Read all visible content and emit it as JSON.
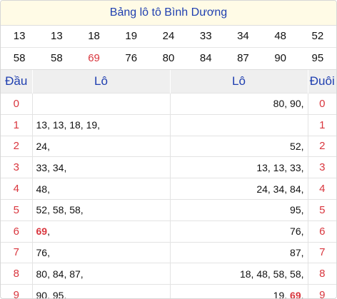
{
  "title": "Bảng lô tô Bình Dương",
  "numbers_row1": [
    "13",
    "13",
    "18",
    "19",
    "24",
    "33",
    "34",
    "48",
    "52"
  ],
  "numbers_row2": [
    "58",
    "58",
    "69",
    "76",
    "80",
    "84",
    "87",
    "90",
    "95"
  ],
  "highlight_number": "69",
  "headers": {
    "dau": "Đầu",
    "lo_left": "Lô",
    "lo_right": "Lô",
    "duoi": "Đuôi"
  },
  "rows": [
    {
      "digit": "0",
      "lo_by_head": "",
      "lo_by_tail": "80, 90,"
    },
    {
      "digit": "1",
      "lo_by_head": "13, 13, 18, 19,",
      "lo_by_tail": ""
    },
    {
      "digit": "2",
      "lo_by_head": "24,",
      "lo_by_tail": "52,"
    },
    {
      "digit": "3",
      "lo_by_head": "33, 34,",
      "lo_by_tail": "13, 13, 33,"
    },
    {
      "digit": "4",
      "lo_by_head": "48,",
      "lo_by_tail": "24, 34, 84,"
    },
    {
      "digit": "5",
      "lo_by_head": "52, 58, 58,",
      "lo_by_tail": "95,"
    },
    {
      "digit": "6",
      "lo_by_head": "69,",
      "lo_by_tail": "76,"
    },
    {
      "digit": "7",
      "lo_by_head": "76,",
      "lo_by_tail": "87,"
    },
    {
      "digit": "8",
      "lo_by_head": "80, 84, 87,",
      "lo_by_tail": "18, 48, 58, 58,"
    },
    {
      "digit": "9",
      "lo_by_head": "90, 95,",
      "lo_by_tail": "19, 69,"
    }
  ],
  "colors": {
    "accent": "#1f3fb0",
    "highlight": "#d9363e",
    "title_bg": "#fffbe6",
    "header_bg": "#efefef"
  }
}
